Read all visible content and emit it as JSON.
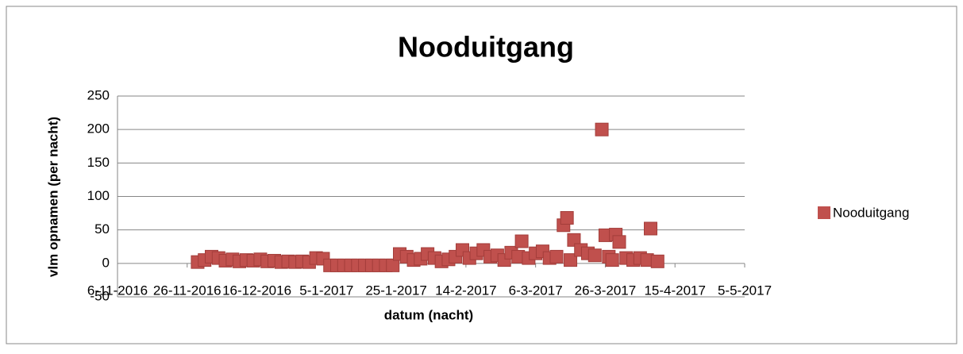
{
  "chart_data": {
    "type": "scatter",
    "title": "Nooduitgang",
    "xlabel": "datum (nacht)",
    "ylabel": "vlm opnamen (per nacht)",
    "series": [
      {
        "name": "Nooduitgang",
        "color": "#c0504d",
        "x": [
          "29-11-2016",
          "1-12-2016",
          "3-12-2016",
          "5-12-2016",
          "7-12-2016",
          "9-12-2016",
          "11-12-2016",
          "13-12-2016",
          "15-12-2016",
          "17-12-2016",
          "19-12-2016",
          "21-12-2016",
          "23-12-2016",
          "25-12-2016",
          "27-12-2016",
          "29-12-2016",
          "31-12-2016",
          "2-1-2017",
          "4-1-2017",
          "6-1-2017",
          "8-1-2017",
          "10-1-2017",
          "12-1-2017",
          "14-1-2017",
          "16-1-2017",
          "18-1-2017",
          "20-1-2017",
          "22-1-2017",
          "24-1-2017",
          "26-1-2017",
          "28-1-2017",
          "30-1-2017",
          "1-2-2017",
          "3-2-2017",
          "5-2-2017",
          "7-2-2017",
          "9-2-2017",
          "11-2-2017",
          "13-2-2017",
          "15-2-2017",
          "17-2-2017",
          "19-2-2017",
          "21-2-2017",
          "23-2-2017",
          "25-2-2017",
          "27-2-2017",
          "1-3-2017",
          "2-3-2017",
          "4-3-2017",
          "6-3-2017",
          "8-3-2017",
          "10-3-2017",
          "12-3-2017",
          "14-3-2017",
          "15-3-2017",
          "16-3-2017",
          "17-3-2017",
          "19-3-2017",
          "21-3-2017",
          "23-3-2017",
          "25-3-2017",
          "26-3-2017",
          "27-3-2017",
          "28-3-2017",
          "29-3-2017",
          "30-3-2017",
          "1-4-2017",
          "3-4-2017",
          "5-4-2017",
          "7-4-2017",
          "8-4-2017",
          "10-4-2017"
        ],
        "values": [
          2,
          5,
          10,
          8,
          4,
          6,
          3,
          5,
          4,
          6,
          3,
          4,
          2,
          3,
          2,
          3,
          2,
          8,
          7,
          -3,
          -3,
          -3,
          -3,
          -3,
          -3,
          -3,
          -3,
          -3,
          -3,
          14,
          10,
          5,
          7,
          14,
          8,
          3,
          6,
          10,
          20,
          8,
          15,
          20,
          10,
          12,
          5,
          16,
          10,
          33,
          8,
          15,
          18,
          8,
          10,
          57,
          68,
          5,
          35,
          20,
          15,
          12,
          200,
          42,
          10,
          5,
          43,
          32,
          8,
          5,
          8,
          5,
          52,
          3
        ]
      }
    ],
    "xlim": [
      "6-11-2016",
      "5-5-2017"
    ],
    "xticks": [
      "6-11-2016",
      "26-11-2016",
      "16-12-2016",
      "5-1-2017",
      "25-1-2017",
      "14-2-2017",
      "6-3-2017",
      "26-3-2017",
      "15-4-2017",
      "5-5-2017"
    ],
    "ylim": [
      -50,
      250
    ],
    "yticks": [
      -50,
      0,
      50,
      100,
      150,
      200,
      250
    ],
    "grid": true,
    "legend": "right"
  }
}
